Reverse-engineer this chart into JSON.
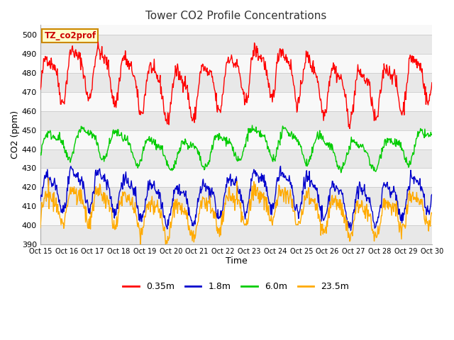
{
  "title": "Tower CO2 Profile Concentrations",
  "xlabel": "Time",
  "ylabel": "CO2 (ppm)",
  "ylim": [
    390,
    505
  ],
  "yticks": [
    390,
    400,
    410,
    420,
    430,
    440,
    450,
    460,
    470,
    480,
    490,
    500
  ],
  "annotation_text": "TZ_co2prof",
  "annotation_bbox": {
    "facecolor": "#ffffcc",
    "edgecolor": "#cc8800",
    "linewidth": 1.5
  },
  "fig_bg_color": "#ffffff",
  "plot_bg_color": "#ffffff",
  "band_colors": [
    "#e8e8e8",
    "#f8f8f8"
  ],
  "colors": {
    "red": "#ff0000",
    "blue": "#0000cc",
    "green": "#00cc00",
    "orange": "#ffaa00"
  },
  "legend_labels": [
    "0.35m",
    "1.8m",
    "6.0m",
    "23.5m"
  ],
  "x_tick_labels": [
    "Oct 15",
    "Oct 16",
    "Oct 17",
    "Oct 18",
    "Oct 19",
    "Oct 20",
    "Oct 21",
    "Oct 22",
    "Oct 23",
    "Oct 24",
    "Oct 25",
    "Oct 26",
    "Oct 27",
    "Oct 28",
    "Oct 29",
    "Oct 30"
  ],
  "n_points": 720,
  "seed": 42,
  "red_base": 476,
  "red_amp": 12,
  "green_base": 441,
  "green_amp": 7,
  "blue_base": 416,
  "blue_amp": 9,
  "orange_base": 411,
  "orange_amp": 8,
  "grid_color": "#cccccc",
  "linewidth": 1.0,
  "figsize": [
    6.4,
    4.8
  ],
  "dpi": 100
}
